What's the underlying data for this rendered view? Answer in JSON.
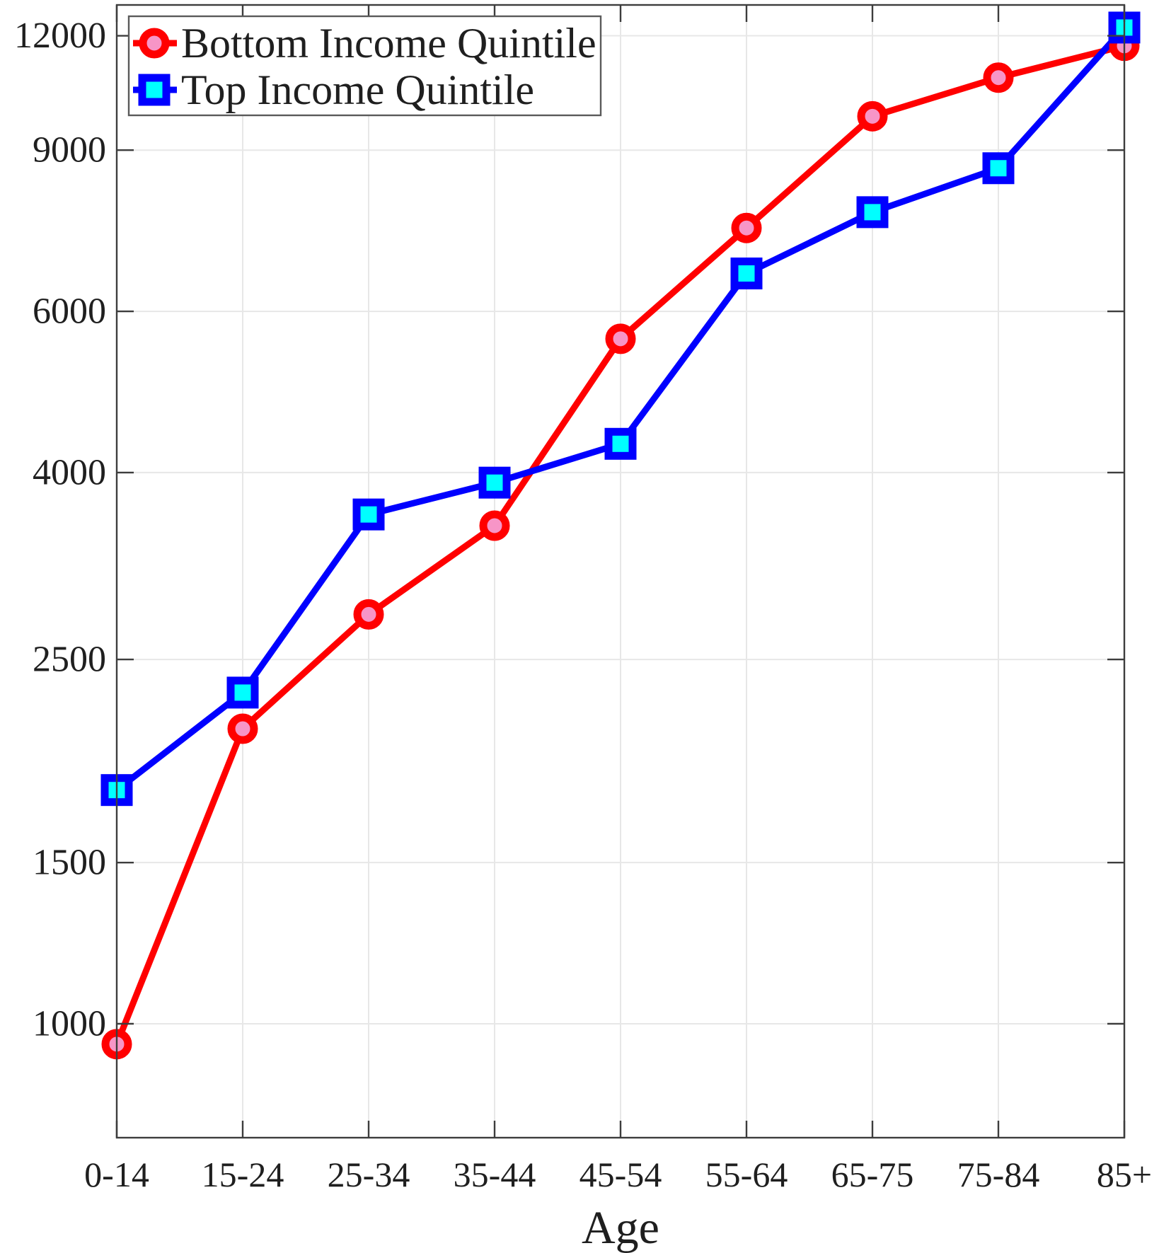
{
  "chart_data": {
    "type": "line",
    "title": "",
    "xlabel": "Age",
    "ylabel": "",
    "y_scale": "log",
    "ylim": [
      750,
      13000
    ],
    "grid": true,
    "legend_position": "top-left",
    "categories": [
      "0-14",
      "15-24",
      "25-34",
      "35-44",
      "45-54",
      "55-64",
      "65-75",
      "75-84",
      "85+"
    ],
    "yticks": [
      1000,
      1500,
      2500,
      4000,
      6000,
      9000,
      12000
    ],
    "ytick_labels": [
      "1000",
      "1500",
      "2500",
      "4000",
      "6000",
      "9000",
      "12000"
    ],
    "series": [
      {
        "name": "Bottom Income Quintile",
        "marker": "circle",
        "line_color": "#ff0000",
        "marker_fill": "#f795c7",
        "values": [
          950,
          2100,
          2800,
          3500,
          5600,
          7400,
          9800,
          10800,
          11700
        ]
      },
      {
        "name": "Top Income Quintile",
        "marker": "square",
        "line_color": "#0000ff",
        "marker_fill": "#00ffff",
        "values": [
          1800,
          2300,
          3600,
          3900,
          4300,
          6600,
          7700,
          8600,
          12250
        ]
      }
    ]
  },
  "colors": {
    "background": "#ffffff",
    "grid": "#e7e7e7",
    "axis_box": "#3d3d3d",
    "tick": "#3d3d3d",
    "text": "#1f1f1f",
    "legend_border": "#5a5a5a",
    "legend_background": "#ffffff"
  }
}
